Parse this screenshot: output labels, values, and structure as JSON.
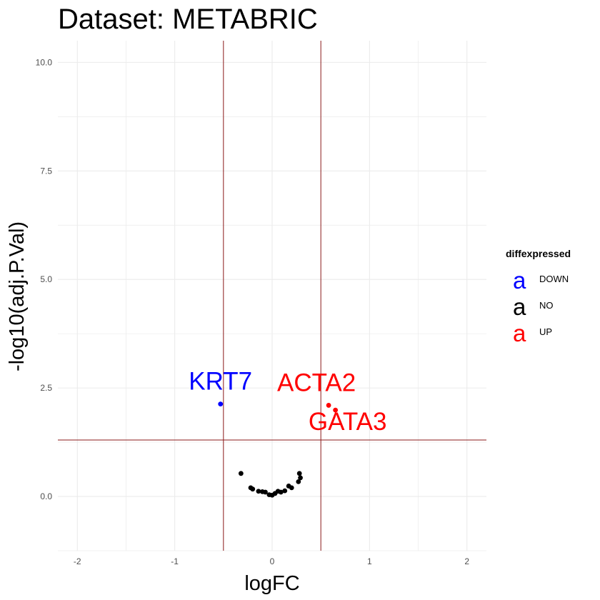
{
  "chart_data": {
    "type": "scatter",
    "title": "Dataset: METABRIC",
    "xlabel": "logFC",
    "ylabel": "-log10(adj.P.Val)",
    "xlim": [
      -2.2,
      2.2
    ],
    "ylim": [
      -1.25,
      10.5
    ],
    "x_ticks": [
      -2,
      -1,
      0,
      1,
      2
    ],
    "x_tick_labels": [
      "-2",
      "-1",
      "0",
      "1",
      "2"
    ],
    "y_ticks": [
      0,
      2.5,
      5,
      7.5,
      10
    ],
    "y_tick_labels": [
      "0.0",
      "2.5",
      "5.0",
      "7.5",
      "10.0"
    ],
    "grid": true,
    "threshold_lines": {
      "vertical": [
        -0.5,
        0.5
      ],
      "horizontal": [
        1.3
      ],
      "color": "#8b1a1a"
    },
    "legend": {
      "title": "diffexpressed",
      "position": "right",
      "entries": [
        {
          "label": "DOWN",
          "color": "#0000ff",
          "key": "a"
        },
        {
          "label": "NO",
          "color": "#000000",
          "key": "a"
        },
        {
          "label": "UP",
          "color": "#ff0000",
          "key": "a"
        }
      ]
    },
    "series": [
      {
        "name": "DOWN",
        "color": "#0000ff",
        "points": [
          {
            "x": -0.53,
            "y": 2.13,
            "label": "KRT7"
          }
        ]
      },
      {
        "name": "NO",
        "color": "#000000",
        "points": [
          {
            "x": -0.32,
            "y": 0.53
          },
          {
            "x": -0.22,
            "y": 0.2
          },
          {
            "x": -0.2,
            "y": 0.17
          },
          {
            "x": -0.14,
            "y": 0.12
          },
          {
            "x": -0.1,
            "y": 0.11
          },
          {
            "x": -0.07,
            "y": 0.1
          },
          {
            "x": -0.03,
            "y": 0.04
          },
          {
            "x": 0.0,
            "y": 0.03
          },
          {
            "x": 0.03,
            "y": 0.07
          },
          {
            "x": 0.06,
            "y": 0.12
          },
          {
            "x": 0.09,
            "y": 0.1
          },
          {
            "x": 0.13,
            "y": 0.13
          },
          {
            "x": 0.17,
            "y": 0.24
          },
          {
            "x": 0.2,
            "y": 0.2
          },
          {
            "x": 0.27,
            "y": 0.34
          },
          {
            "x": 0.29,
            "y": 0.43
          },
          {
            "x": 0.28,
            "y": 0.53
          }
        ]
      },
      {
        "name": "UP",
        "color": "#ff0000",
        "points": [
          {
            "x": 0.58,
            "y": 2.1,
            "label": "ACTA2"
          },
          {
            "x": 0.65,
            "y": 1.99,
            "label": "GATA3"
          }
        ]
      }
    ]
  }
}
